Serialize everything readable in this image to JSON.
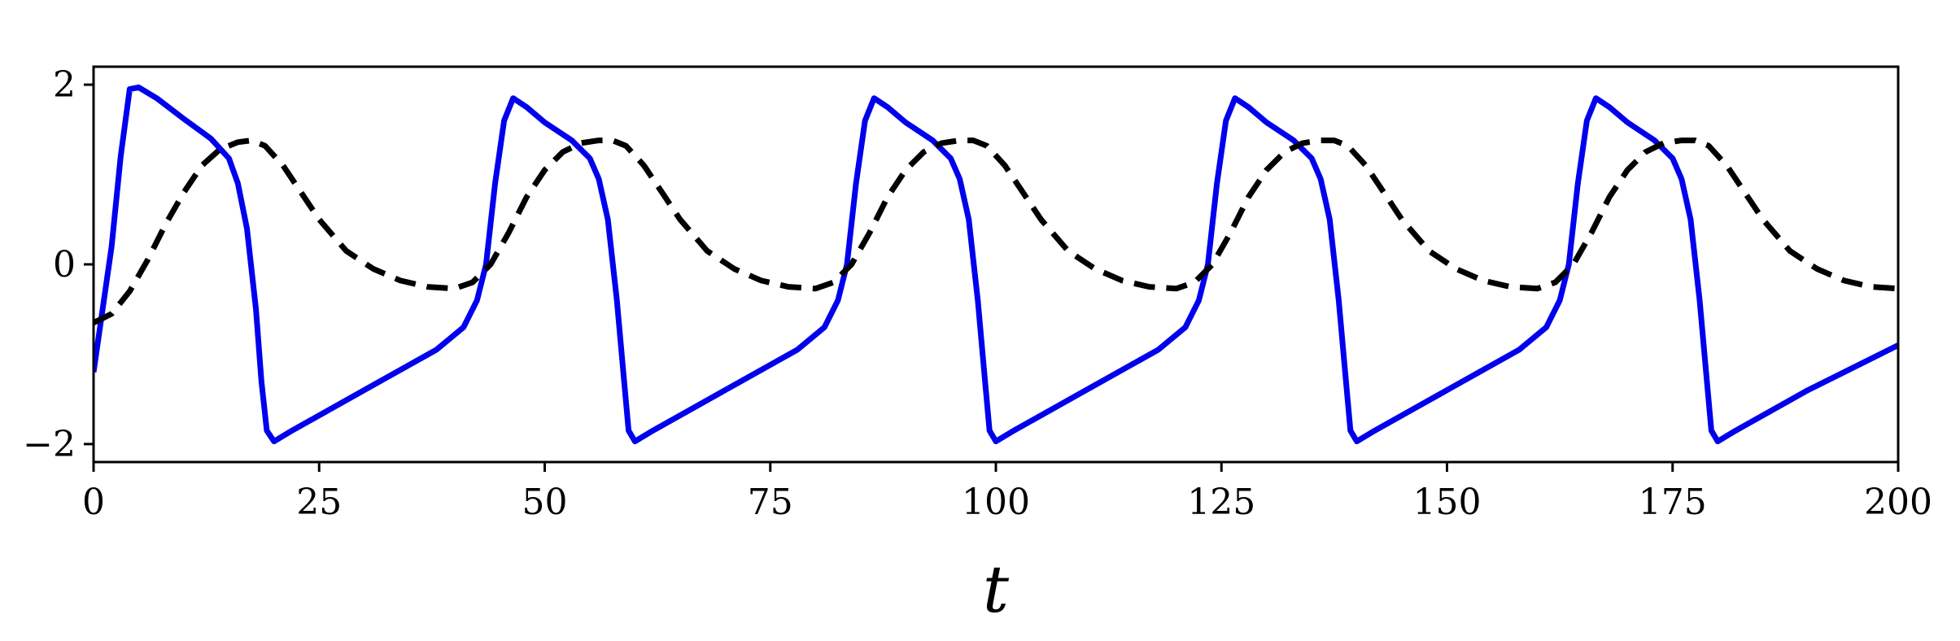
{
  "chart_data": {
    "type": "line",
    "title": "",
    "xlabel": "t",
    "ylabel": "",
    "xlim": [
      0,
      200
    ],
    "ylim": [
      -2.2,
      2.2
    ],
    "x_ticks": [
      0,
      25,
      50,
      75,
      100,
      125,
      150,
      175,
      200
    ],
    "x_tick_labels": [
      "0",
      "25",
      "50",
      "75",
      "100",
      "125",
      "150",
      "175",
      "200"
    ],
    "y_ticks": [
      -2,
      0,
      2
    ],
    "y_tick_labels": [
      "−2",
      "0",
      "2"
    ],
    "grid": false,
    "legend": "none",
    "series": [
      {
        "style": "solid",
        "color": "#0000ee",
        "x": [
          0,
          1,
          2,
          3,
          4,
          5,
          7,
          10,
          13,
          15,
          16,
          17,
          18,
          18.6,
          19.2,
          20,
          22,
          30,
          38,
          41,
          42.5,
          43.5,
          44.5,
          45.5,
          46.5,
          48,
          50,
          53,
          55,
          56,
          57,
          58,
          58.8,
          59.3,
          60,
          62,
          70,
          78,
          81,
          82.5,
          83.5,
          84.5,
          85.5,
          86.5,
          88,
          90,
          93,
          95,
          96,
          97,
          98,
          98.8,
          99.3,
          100,
          102,
          110,
          118,
          121,
          122.5,
          123.5,
          124.5,
          125.5,
          126.5,
          128,
          130,
          133,
          135,
          136,
          137,
          138,
          138.8,
          139.3,
          140,
          142,
          150,
          158,
          161,
          162.5,
          163.5,
          164.5,
          165.5,
          166.5,
          168,
          170,
          173,
          175,
          176,
          177,
          178,
          178.8,
          179.3,
          180,
          182,
          190,
          200
        ],
        "y": [
          -1.2,
          -0.5,
          0.2,
          1.2,
          1.95,
          1.97,
          1.85,
          1.62,
          1.4,
          1.18,
          0.9,
          0.4,
          -0.5,
          -1.3,
          -1.85,
          -1.97,
          -1.85,
          -1.4,
          -0.95,
          -0.7,
          -0.4,
          0.0,
          0.9,
          1.6,
          1.85,
          1.75,
          1.58,
          1.38,
          1.18,
          0.95,
          0.5,
          -0.4,
          -1.3,
          -1.85,
          -1.97,
          -1.85,
          -1.4,
          -0.95,
          -0.7,
          -0.4,
          0.0,
          0.9,
          1.6,
          1.85,
          1.75,
          1.58,
          1.38,
          1.18,
          0.95,
          0.5,
          -0.4,
          -1.3,
          -1.85,
          -1.97,
          -1.85,
          -1.4,
          -0.95,
          -0.7,
          -0.4,
          0.0,
          0.9,
          1.6,
          1.85,
          1.75,
          1.58,
          1.38,
          1.18,
          0.95,
          0.5,
          -0.4,
          -1.3,
          -1.85,
          -1.97,
          -1.85,
          -1.4,
          -0.95,
          -0.7,
          -0.4,
          0.0,
          0.9,
          1.6,
          1.85,
          1.75,
          1.58,
          1.38,
          1.18,
          0.95,
          0.5,
          -0.4,
          -1.3,
          -1.85,
          -1.97,
          -1.85,
          -1.4,
          -0.9
        ]
      },
      {
        "style": "dashed",
        "color": "#000000",
        "x": [
          0,
          2,
          4,
          6,
          8,
          10,
          12,
          14,
          16,
          17.5,
          19,
          21,
          23,
          25,
          28,
          31,
          34,
          37,
          40,
          42,
          44,
          46,
          48,
          50,
          52,
          54,
          56,
          57.5,
          59,
          61,
          63,
          65,
          68,
          71,
          74,
          77,
          80,
          82,
          84,
          86,
          88,
          90,
          92,
          94,
          96,
          97.5,
          99,
          101,
          103,
          105,
          108,
          111,
          114,
          117,
          120,
          122,
          124,
          126,
          128,
          130,
          132,
          134,
          136,
          137.5,
          139,
          141,
          143,
          145,
          148,
          151,
          154,
          157,
          160,
          162,
          164,
          166,
          168,
          170,
          172,
          174,
          176,
          177.5,
          179,
          181,
          183,
          185,
          188,
          191,
          194,
          197,
          200
        ],
        "y": [
          -0.65,
          -0.55,
          -0.3,
          0.05,
          0.45,
          0.8,
          1.1,
          1.28,
          1.36,
          1.38,
          1.32,
          1.1,
          0.8,
          0.5,
          0.15,
          -0.05,
          -0.18,
          -0.25,
          -0.27,
          -0.2,
          0.0,
          0.35,
          0.75,
          1.05,
          1.25,
          1.35,
          1.38,
          1.38,
          1.32,
          1.1,
          0.8,
          0.5,
          0.15,
          -0.05,
          -0.18,
          -0.25,
          -0.27,
          -0.2,
          0.0,
          0.35,
          0.75,
          1.05,
          1.25,
          1.35,
          1.38,
          1.38,
          1.32,
          1.1,
          0.8,
          0.5,
          0.15,
          -0.05,
          -0.18,
          -0.25,
          -0.27,
          -0.2,
          0.0,
          0.35,
          0.75,
          1.05,
          1.25,
          1.35,
          1.38,
          1.38,
          1.32,
          1.1,
          0.8,
          0.5,
          0.15,
          -0.05,
          -0.18,
          -0.25,
          -0.27,
          -0.2,
          0.0,
          0.35,
          0.75,
          1.05,
          1.25,
          1.35,
          1.38,
          1.38,
          1.32,
          1.1,
          0.8,
          0.5,
          0.15,
          -0.05,
          -0.18,
          -0.25,
          -0.27
        ]
      }
    ]
  }
}
